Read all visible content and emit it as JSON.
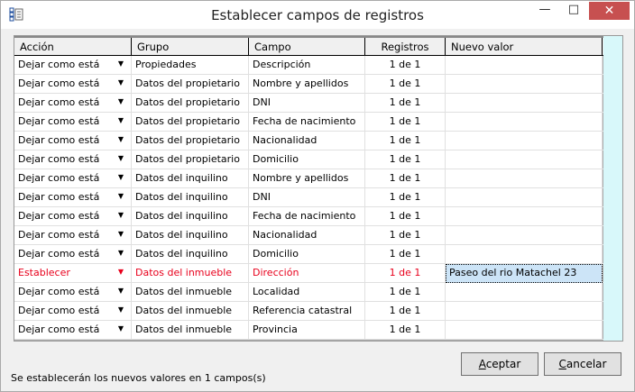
{
  "window": {
    "title": "Establecer campos de registros",
    "icon": "checklist-icon"
  },
  "columns": [
    "Acción",
    "Grupo",
    "Campo",
    "Registros",
    "Nuevo valor"
  ],
  "rows": [
    {
      "accion": "Dejar como está",
      "grupo": "Propiedades",
      "campo": "Descripción",
      "registros": "1 de 1",
      "valor": ""
    },
    {
      "accion": "Dejar como está",
      "grupo": "Datos del propietario",
      "campo": "Nombre y apellidos",
      "registros": "1 de 1",
      "valor": ""
    },
    {
      "accion": "Dejar como está",
      "grupo": "Datos del propietario",
      "campo": "DNI",
      "registros": "1 de 1",
      "valor": ""
    },
    {
      "accion": "Dejar como está",
      "grupo": "Datos del propietario",
      "campo": "Fecha de nacimiento",
      "registros": "1 de 1",
      "valor": ""
    },
    {
      "accion": "Dejar como está",
      "grupo": "Datos del propietario",
      "campo": "Nacionalidad",
      "registros": "1 de 1",
      "valor": ""
    },
    {
      "accion": "Dejar como está",
      "grupo": "Datos del propietario",
      "campo": "Domicilio",
      "registros": "1 de 1",
      "valor": ""
    },
    {
      "accion": "Dejar como está",
      "grupo": "Datos del inquilino",
      "campo": "Nombre y apellidos",
      "registros": "1 de 1",
      "valor": ""
    },
    {
      "accion": "Dejar como está",
      "grupo": "Datos del inquilino",
      "campo": "DNI",
      "registros": "1 de 1",
      "valor": ""
    },
    {
      "accion": "Dejar como está",
      "grupo": "Datos del inquilino",
      "campo": "Fecha de nacimiento",
      "registros": "1 de 1",
      "valor": ""
    },
    {
      "accion": "Dejar como está",
      "grupo": "Datos del inquilino",
      "campo": "Nacionalidad",
      "registros": "1 de 1",
      "valor": ""
    },
    {
      "accion": "Dejar como está",
      "grupo": "Datos del inquilino",
      "campo": "Domicilio",
      "registros": "1 de 1",
      "valor": ""
    },
    {
      "accion": "Establecer",
      "grupo": "Datos del inmueble",
      "campo": "Dirección",
      "registros": "1 de 1",
      "valor": "Paseo del rio Matachel 23",
      "highlight": true
    },
    {
      "accion": "Dejar como está",
      "grupo": "Datos del inmueble",
      "campo": "Localidad",
      "registros": "1 de 1",
      "valor": ""
    },
    {
      "accion": "Dejar como está",
      "grupo": "Datos del inmueble",
      "campo": "Referencia catastral",
      "registros": "1 de 1",
      "valor": ""
    },
    {
      "accion": "Dejar como está",
      "grupo": "Datos del inmueble",
      "campo": "Provincia",
      "registros": "1 de 1",
      "valor": ""
    }
  ],
  "status": "Se establecerán los nuevos valores en 1 campos(s)",
  "buttons": {
    "ok_mn": "A",
    "ok_rest": "ceptar",
    "cancel_mn": "C",
    "cancel_rest": "ancelar"
  },
  "colors": {
    "highlight": "#e8001c",
    "close": "#c75050",
    "selection": "#cce4f7"
  }
}
